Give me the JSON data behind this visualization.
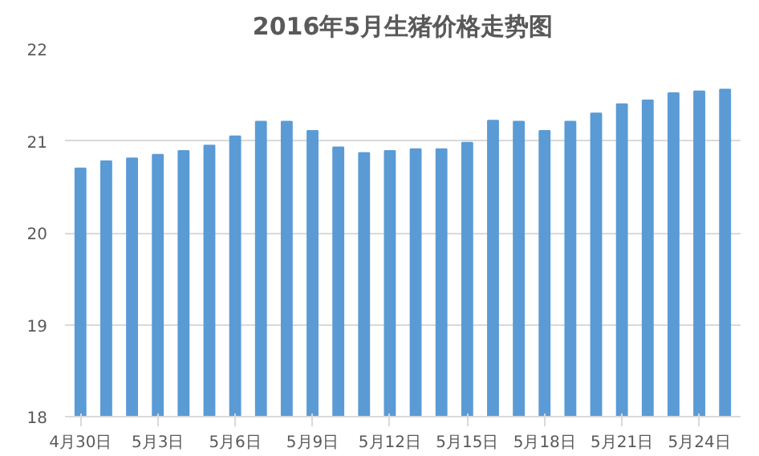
{
  "chart_data": {
    "type": "bar",
    "title": "2016年5月生猪价格走势图",
    "categories": [
      "4月30日",
      null,
      null,
      "5月3日",
      null,
      null,
      "5月6日",
      null,
      null,
      "5月9日",
      null,
      null,
      "5月12日",
      null,
      null,
      "5月15日",
      null,
      null,
      "5月18日",
      null,
      null,
      "5月21日",
      null,
      null,
      "5月24日",
      null
    ],
    "values": [
      20.7,
      20.78,
      20.81,
      20.85,
      20.89,
      20.95,
      21.05,
      21.21,
      21.21,
      21.11,
      20.93,
      20.87,
      20.89,
      20.91,
      20.91,
      20.98,
      21.22,
      21.21,
      21.11,
      21.21,
      21.3,
      21.4,
      21.44,
      21.52,
      21.54,
      21.56
    ],
    "color": "#5b9bd5",
    "ylim": [
      18,
      22
    ],
    "yticks": [
      18,
      19,
      20,
      21,
      22
    ],
    "grid": "y"
  }
}
